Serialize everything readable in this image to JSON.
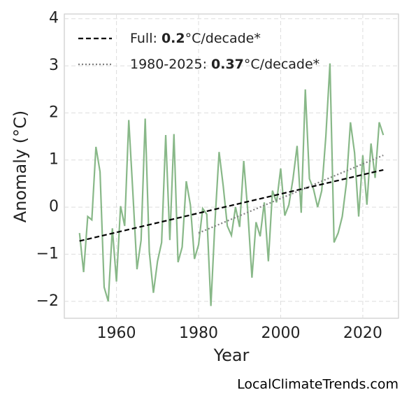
{
  "chart_data": {
    "type": "line",
    "xlabel": "Year",
    "ylabel": "Anomaly (°C)",
    "annotation": "LocalClimateTrends.com",
    "x": [
      1951,
      1952,
      1953,
      1954,
      1955,
      1956,
      1957,
      1958,
      1959,
      1960,
      1961,
      1962,
      1963,
      1964,
      1965,
      1966,
      1967,
      1968,
      1969,
      1970,
      1971,
      1972,
      1973,
      1974,
      1975,
      1976,
      1977,
      1978,
      1979,
      1980,
      1981,
      1982,
      1983,
      1984,
      1985,
      1986,
      1987,
      1988,
      1989,
      1990,
      1991,
      1992,
      1993,
      1994,
      1995,
      1996,
      1997,
      1998,
      1999,
      2000,
      2001,
      2002,
      2003,
      2004,
      2005,
      2006,
      2007,
      2008,
      2009,
      2010,
      2011,
      2012,
      2013,
      2014,
      2015,
      2016,
      2017,
      2018,
      2019,
      2020,
      2021,
      2022,
      2023,
      2024,
      2025
    ],
    "series": [
      {
        "color": "#88b888",
        "values": [
          -0.55,
          -1.38,
          -0.2,
          -0.27,
          1.28,
          0.75,
          -1.7,
          -2.0,
          -0.45,
          -1.58,
          0.02,
          -0.4,
          1.85,
          0.3,
          -1.32,
          -0.7,
          1.88,
          -0.95,
          -1.82,
          -1.15,
          -0.75,
          1.53,
          -0.7,
          1.55,
          -1.17,
          -0.85,
          0.55,
          0.05,
          -1.1,
          -0.8,
          -0.03,
          -0.15,
          -2.1,
          -0.3,
          1.17,
          0.45,
          -0.4,
          -0.6,
          0.0,
          -0.42,
          0.98,
          -0.1,
          -1.5,
          -0.32,
          -0.62,
          0.1,
          -1.15,
          0.35,
          0.1,
          0.82,
          -0.18,
          0.05,
          0.6,
          1.3,
          -0.12,
          2.5,
          0.6,
          0.38,
          0.0,
          0.35,
          1.5,
          3.05,
          -0.75,
          -0.55,
          -0.2,
          0.5,
          1.8,
          1.15,
          -0.2,
          1.1,
          0.05,
          1.35,
          0.62,
          1.8,
          1.53
        ]
      },
      {
        "name": "Full: 0.2°C/decade*",
        "bold": "0.2",
        "color": "#000000",
        "style": "dashed",
        "x": [
          1951,
          2025
        ],
        "values": [
          -0.72,
          0.79
        ]
      },
      {
        "name": "1980-2025: 0.37°C/decade*",
        "bold": "0.37",
        "color": "#808080",
        "style": "dotted",
        "x": [
          1980,
          2025
        ],
        "values": [
          -0.55,
          1.1
        ]
      }
    ],
    "xlim": [
      1947.3,
      2028.7
    ],
    "ylim": [
      -2.36,
      4.1
    ],
    "xticks": [
      1960,
      1980,
      2000,
      2020
    ],
    "yticks": [
      {
        "value": -2,
        "label": "−2"
      },
      {
        "value": -1,
        "label": "−1"
      },
      0,
      1,
      2,
      3,
      4
    ],
    "grid": true,
    "legend": "upper left"
  }
}
